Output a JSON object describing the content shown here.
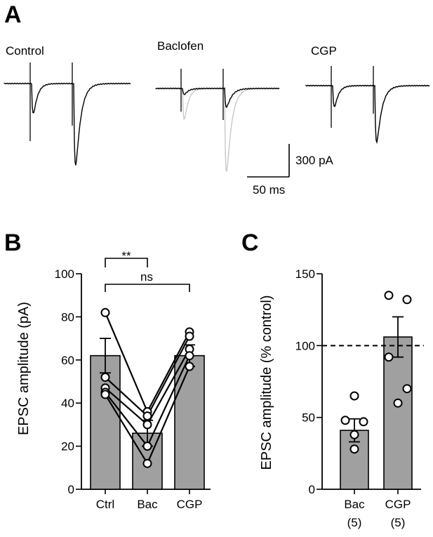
{
  "panel_letters": {
    "a": "A",
    "b": "B",
    "c": "C"
  },
  "traces": {
    "conditions": [
      "Control",
      "Baclofen",
      "CGP"
    ],
    "scale_current": "300 pA",
    "scale_time": "50 ms",
    "colors": {
      "trace": "#000000",
      "overlay": "#c8c8c8"
    }
  },
  "chart_data": [
    {
      "type": "bar",
      "panel": "B",
      "categories": [
        "Ctrl",
        "Bac",
        "CGP"
      ],
      "values": [
        62,
        26,
        62
      ],
      "errors": [
        8,
        6,
        5
      ],
      "paired_lines": [
        [
          82,
          36,
          73
        ],
        [
          52,
          34,
          71
        ],
        [
          47,
          30,
          65
        ],
        [
          45,
          20,
          62
        ],
        [
          44,
          12,
          57
        ]
      ],
      "ylabel": "EPSC amplitude (pA)",
      "xlabel": "",
      "ylim": [
        0,
        100
      ],
      "yticks": [
        0,
        20,
        40,
        60,
        80,
        100
      ],
      "significance": [
        {
          "from": "Ctrl",
          "to": "Bac",
          "label": "**"
        },
        {
          "from": "Ctrl",
          "to": "CGP",
          "label": "ns"
        }
      ],
      "bar_color": "#a0a0a0"
    },
    {
      "type": "bar",
      "panel": "C",
      "categories": [
        "Bac",
        "CGP"
      ],
      "sublabels": [
        "(5)",
        "(5)"
      ],
      "values": [
        41,
        106
      ],
      "errors": [
        8,
        14
      ],
      "points": [
        [
          65,
          48,
          47,
          38,
          28
        ],
        [
          135,
          132,
          92,
          70,
          60
        ]
      ],
      "ylabel": "EPSC amplitude (% control)",
      "xlabel": "",
      "ylim": [
        0,
        150
      ],
      "yticks": [
        0,
        50,
        100,
        150
      ],
      "reference_line": 100,
      "bar_color": "#a0a0a0"
    }
  ]
}
